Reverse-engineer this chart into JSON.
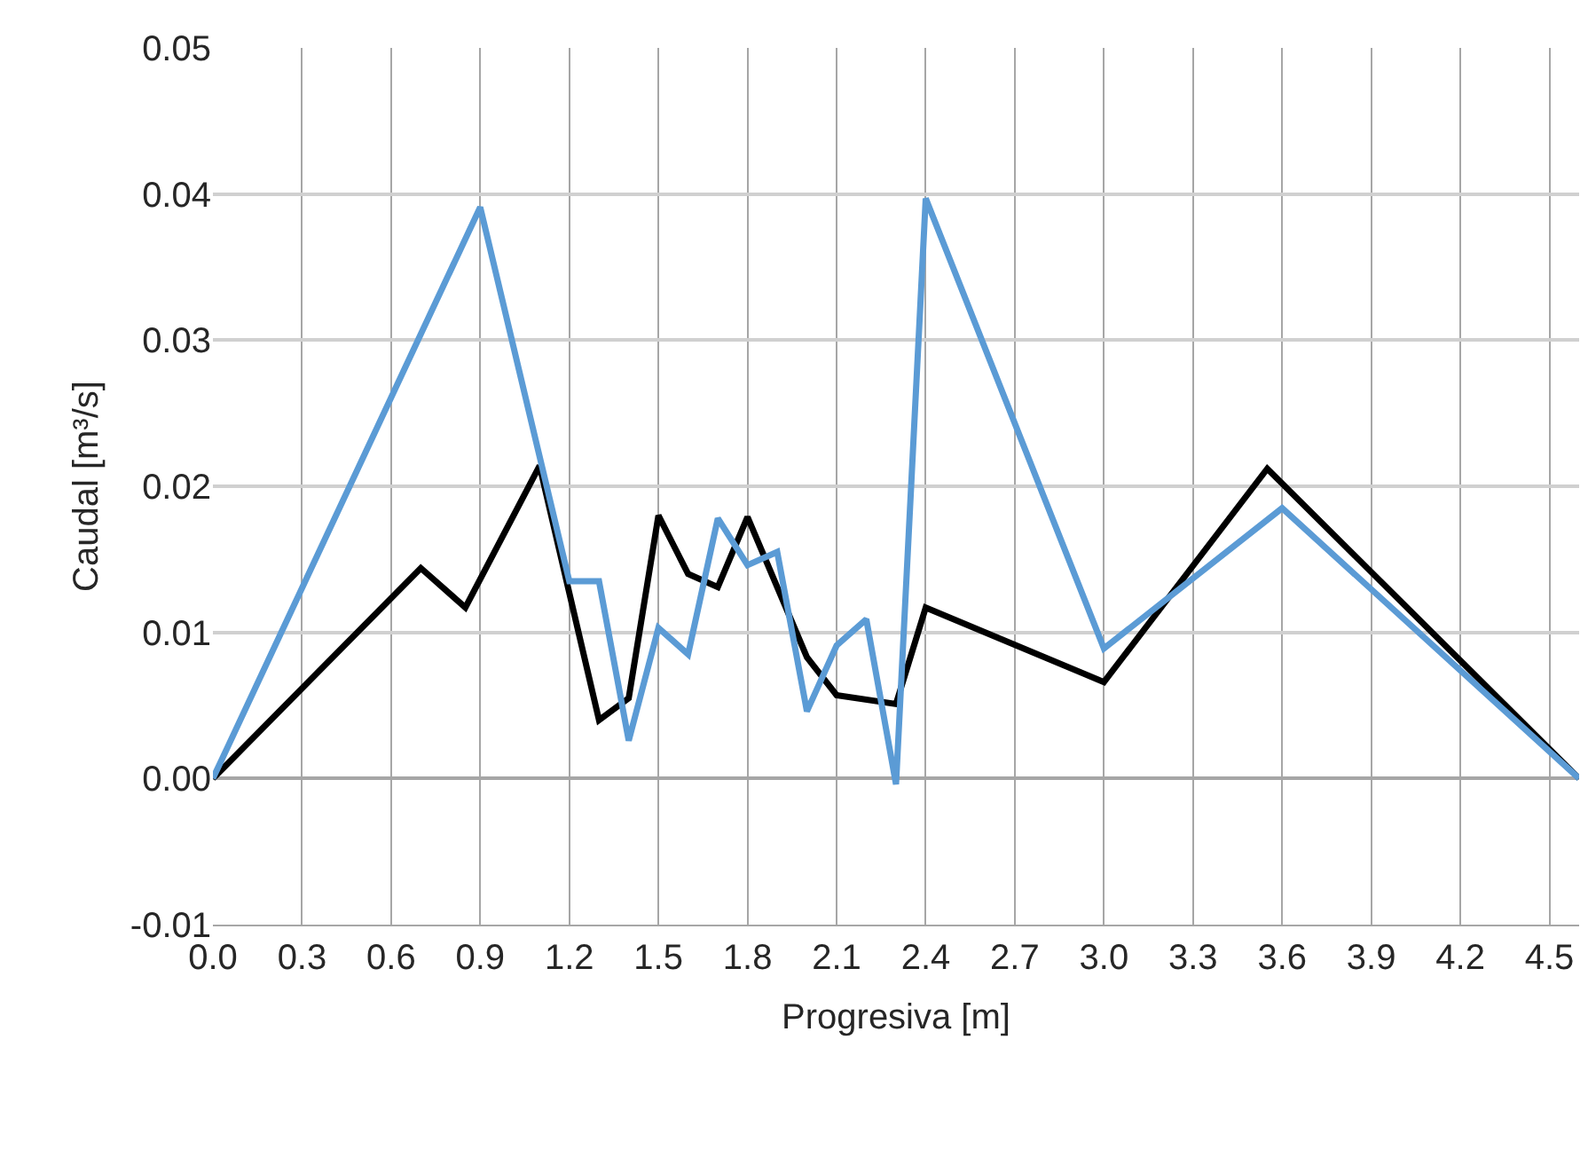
{
  "chart_data": {
    "type": "line",
    "xlabel": "Progresiva [m]",
    "ylabel": "Caudal [m³/s]",
    "xlim": [
      0,
      4.6
    ],
    "ylim": [
      -0.01,
      0.05
    ],
    "xticks": [
      {
        "value": 0,
        "label": "0.0"
      },
      {
        "value": 0.3,
        "label": "0.3"
      },
      {
        "value": 0.6,
        "label": "0.6"
      },
      {
        "value": 0.9,
        "label": "0.9"
      },
      {
        "value": 1.2,
        "label": "1.2"
      },
      {
        "value": 1.5,
        "label": "1.5"
      },
      {
        "value": 1.8,
        "label": "1.8"
      },
      {
        "value": 2.1,
        "label": "2.1"
      },
      {
        "value": 2.4,
        "label": "2.4"
      },
      {
        "value": 2.7,
        "label": "2.7"
      },
      {
        "value": 3.0,
        "label": "3.0"
      },
      {
        "value": 3.3,
        "label": "3.3"
      },
      {
        "value": 3.6,
        "label": "3.6"
      },
      {
        "value": 3.9,
        "label": "3.9"
      },
      {
        "value": 4.2,
        "label": "4.2"
      },
      {
        "value": 4.5,
        "label": "4.5"
      }
    ],
    "yticks": [
      {
        "value": -0.01,
        "label": "-0.01"
      },
      {
        "value": 0,
        "label": "0.00"
      },
      {
        "value": 0.01,
        "label": "0.01"
      },
      {
        "value": 0.02,
        "label": "0.02"
      },
      {
        "value": 0.03,
        "label": "0.03"
      },
      {
        "value": 0.04,
        "label": "0.04"
      },
      {
        "value": 0.05,
        "label": "0.05"
      }
    ],
    "grid": true,
    "marker": "none",
    "line_style": "solid",
    "series": [
      {
        "color": "#000000",
        "x": [
          0,
          0.7,
          0.85,
          1.1,
          1.3,
          1.4,
          1.5,
          1.6,
          1.7,
          1.8,
          2.0,
          2.1,
          2.3,
          2.4,
          3.0,
          3.55,
          4.6
        ],
        "values": [
          0,
          0.0144,
          0.0117,
          0.0214,
          0.004,
          0.0055,
          0.018,
          0.014,
          0.0131,
          0.0179,
          0.0083,
          0.0057,
          0.0051,
          0.0117,
          0.0066,
          0.0212,
          0
        ]
      },
      {
        "color": "#5b9bd5",
        "x": [
          0,
          0.9,
          1.2,
          1.3,
          1.4,
          1.5,
          1.6,
          1.7,
          1.8,
          1.9,
          2.0,
          2.1,
          2.2,
          2.3,
          2.4,
          3.0,
          3.6,
          4.6
        ],
        "values": [
          0,
          0.0391,
          0.0135,
          0.0135,
          0.0026,
          0.0103,
          0.0085,
          0.0178,
          0.0146,
          0.0155,
          0.0046,
          0.0091,
          0.0109,
          -0.0004,
          0.0397,
          0.0089,
          0.0185,
          0
        ]
      }
    ]
  }
}
